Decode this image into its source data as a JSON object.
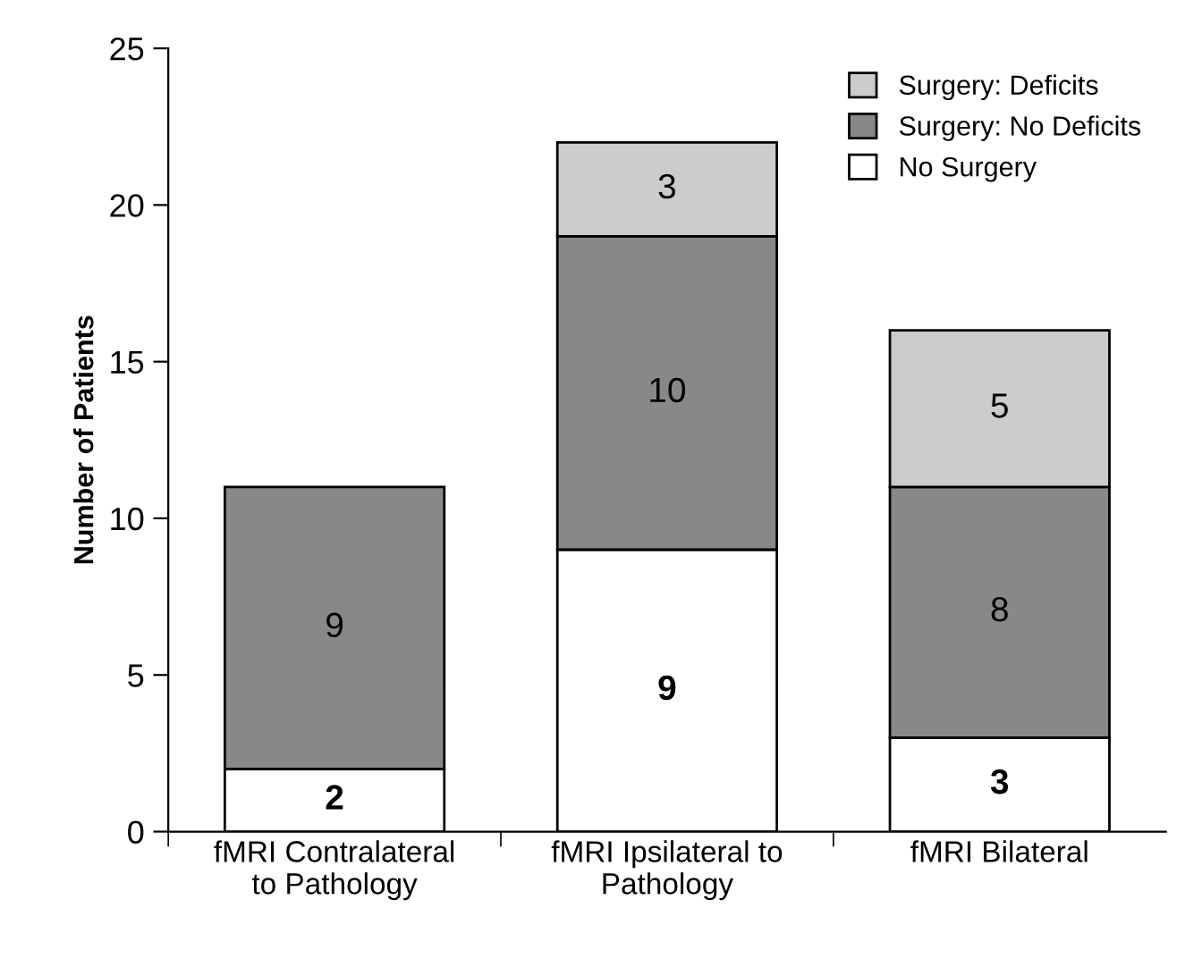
{
  "chart_data": {
    "type": "bar",
    "stacked": true,
    "ylabel": "Number of Patients",
    "categories": [
      "fMRI Contralateral\nto Pathology",
      "fMRI Ipsilateral to\nPathology",
      "fMRI Bilateral"
    ],
    "series": [
      {
        "name": "No Surgery",
        "color": "#ffffff",
        "values": [
          2,
          9,
          3
        ]
      },
      {
        "name": "Surgery: No Deficits",
        "color": "#888888",
        "values": [
          9,
          10,
          8
        ]
      },
      {
        "name": "Surgery: Deficits",
        "color": "#cccccc",
        "values": [
          null,
          3,
          5
        ]
      }
    ],
    "ylim": [
      0,
      25
    ],
    "yticks": [
      0,
      5,
      10,
      15,
      20,
      25
    ],
    "grid": false,
    "legend": "top right",
    "data_labels": true
  }
}
